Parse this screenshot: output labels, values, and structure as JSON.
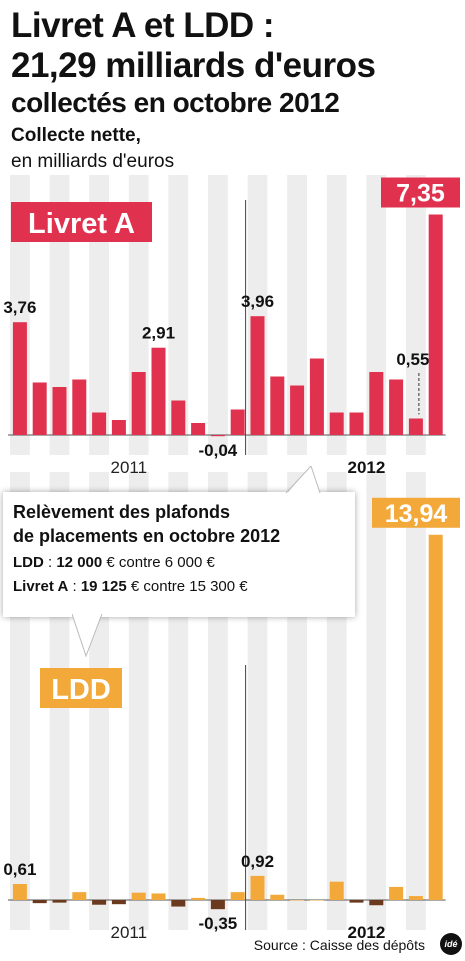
{
  "header": {
    "title_line1": "Livret A et LDD :",
    "title_line2": "21,29 milliards d'euros",
    "subtitle": "collectés en octobre 2012",
    "measure_label": "Collecte nette,",
    "unit_label": "en milliards d'euros"
  },
  "callout": {
    "heading_line1": "Relèvement des plafonds",
    "heading_line2": "de placements en octobre 2012",
    "ldd_name": "LDD",
    "ldd_new": "12 000",
    "ldd_rest": "€ contre 6 000 €",
    "livret_name": "Livret A",
    "livret_new": "19 125",
    "livret_rest": "€ contre 15 300 €",
    "separator": " : "
  },
  "footer": {
    "source": "Source : Caisse des dépôts",
    "logo": "idé"
  },
  "colors": {
    "livret_a": "#e0324e",
    "ldd": "#f2a93a",
    "ldd_negative": "#6b3a1e",
    "column_band": "#ededed"
  },
  "chart_data": [
    {
      "type": "bar",
      "title": "Livret A",
      "unit": "milliards d'euros",
      "year_labels": [
        "2011",
        "2012"
      ],
      "categories": [
        "2011-01",
        "2011-02",
        "2011-03",
        "2011-04",
        "2011-05",
        "2011-06",
        "2011-07",
        "2011-08",
        "2011-09",
        "2011-10",
        "2011-11",
        "2011-12",
        "2012-01",
        "2012-02",
        "2012-03",
        "2012-04",
        "2012-05",
        "2012-06",
        "2012-07",
        "2012-08",
        "2012-09",
        "2012-10"
      ],
      "values": [
        3.76,
        1.75,
        1.6,
        1.85,
        0.75,
        0.5,
        2.1,
        2.91,
        1.15,
        0.4,
        -0.04,
        0.85,
        3.96,
        1.95,
        1.65,
        2.55,
        0.75,
        0.75,
        2.1,
        1.85,
        0.55,
        7.35
      ],
      "labels": {
        "0": "3,76",
        "7": "2,91",
        "10": "-0,04",
        "12": "3,96",
        "20": "0,55",
        "21": "7,35"
      },
      "ylim": [
        -0.7,
        8.3
      ]
    },
    {
      "type": "bar",
      "title": "LDD",
      "unit": "milliards d'euros",
      "year_labels": [
        "2011",
        "2012"
      ],
      "categories": [
        "2011-01",
        "2011-02",
        "2011-03",
        "2011-04",
        "2011-05",
        "2011-06",
        "2011-07",
        "2011-08",
        "2011-09",
        "2011-10",
        "2011-11",
        "2011-12",
        "2012-01",
        "2012-02",
        "2012-03",
        "2012-04",
        "2012-05",
        "2012-06",
        "2012-07",
        "2012-08",
        "2012-09",
        "2012-10"
      ],
      "values": [
        0.61,
        -0.12,
        -0.1,
        0.3,
        -0.18,
        -0.16,
        0.28,
        0.25,
        -0.25,
        0.08,
        -0.35,
        0.3,
        0.92,
        0.2,
        0.0,
        0.0,
        0.7,
        -0.1,
        -0.2,
        0.5,
        0.15,
        13.94
      ],
      "labels": {
        "0": "0,61",
        "10": "-0,35",
        "12": "0,92",
        "21": "13,94"
      },
      "ylim": [
        -1.0,
        14.3
      ]
    }
  ]
}
